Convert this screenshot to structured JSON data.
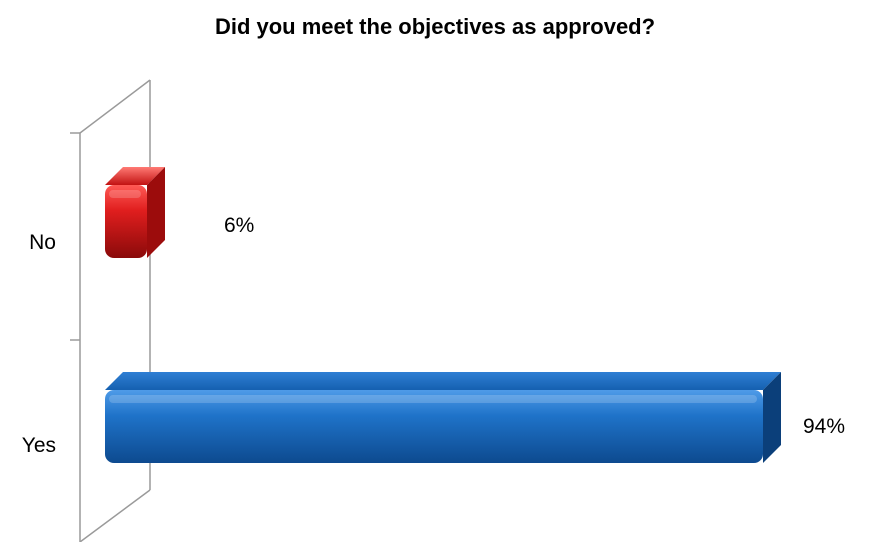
{
  "chart_data": {
    "type": "bar",
    "orientation": "horizontal",
    "title": "Did you meet the objectives as approved?",
    "categories": [
      "No",
      "Yes"
    ],
    "values": [
      6,
      94
    ],
    "value_labels": [
      "6%",
      "94%"
    ],
    "colors": [
      "#c8151b",
      "#1a6fc0"
    ],
    "xlim": [
      0,
      100
    ],
    "grid": false,
    "legend": "none",
    "style": "3d-cylinder"
  }
}
